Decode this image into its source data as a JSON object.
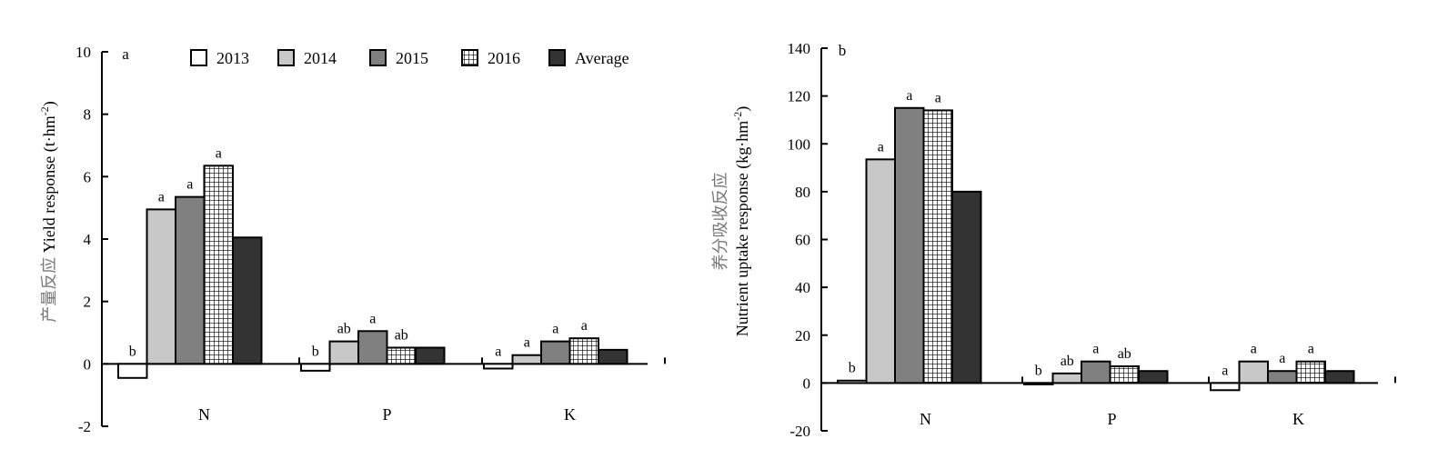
{
  "colors": {
    "2013": "#ffffff",
    "2014": "#c8c8c8",
    "2015": "#808080",
    "2016": "hatch",
    "Average": "#333333"
  },
  "legend": [
    "2013",
    "2014",
    "2015",
    "2016",
    "Average"
  ],
  "chart_data": [
    {
      "type": "bar",
      "panel_label": "a",
      "ylabel_cn": "产量反应",
      "ylabel": "Yield response (t·hm",
      "ylabel_sup": "-2",
      "ylabel_close": ")",
      "ylim": [
        -2,
        10
      ],
      "yticks": [
        -2,
        0,
        2,
        4,
        6,
        8,
        10
      ],
      "categories": [
        "N",
        "P",
        "K"
      ],
      "series": [
        {
          "name": "2013",
          "values": [
            -0.45,
            -0.22,
            -0.15
          ]
        },
        {
          "name": "2014",
          "values": [
            4.95,
            0.72,
            0.28
          ]
        },
        {
          "name": "2015",
          "values": [
            5.35,
            1.05,
            0.72
          ]
        },
        {
          "name": "2016",
          "values": [
            6.35,
            0.52,
            0.82
          ]
        },
        {
          "name": "Average",
          "values": [
            4.05,
            0.52,
            0.45
          ]
        }
      ],
      "significance": [
        [
          "b",
          "a",
          "a",
          "a",
          ""
        ],
        [
          "b",
          "ab",
          "a",
          "ab",
          ""
        ],
        [
          "a",
          "a",
          "a",
          "a",
          ""
        ]
      ],
      "legend_position": "top"
    },
    {
      "type": "bar",
      "panel_label": "b",
      "ylabel_cn": "养分吸收反应",
      "ylabel": "Nutrient uptake response (kg·hm",
      "ylabel_sup": "-2",
      "ylabel_close": ")",
      "ylim": [
        -20,
        140
      ],
      "yticks": [
        -20,
        0,
        20,
        40,
        60,
        80,
        100,
        120,
        140
      ],
      "categories": [
        "N",
        "P",
        "K"
      ],
      "series": [
        {
          "name": "2013",
          "values": [
            1,
            0,
            -3
          ]
        },
        {
          "name": "2014",
          "values": [
            93.5,
            4,
            9
          ]
        },
        {
          "name": "2015",
          "values": [
            115,
            9,
            5
          ]
        },
        {
          "name": "2016",
          "values": [
            114,
            7,
            9
          ]
        },
        {
          "name": "Average",
          "values": [
            80,
            5,
            5
          ]
        }
      ],
      "significance": [
        [
          "b",
          "a",
          "a",
          "a",
          ""
        ],
        [
          "b",
          "ab",
          "a",
          "ab",
          ""
        ],
        [
          "a",
          "a",
          "a",
          "a",
          ""
        ]
      ]
    }
  ]
}
